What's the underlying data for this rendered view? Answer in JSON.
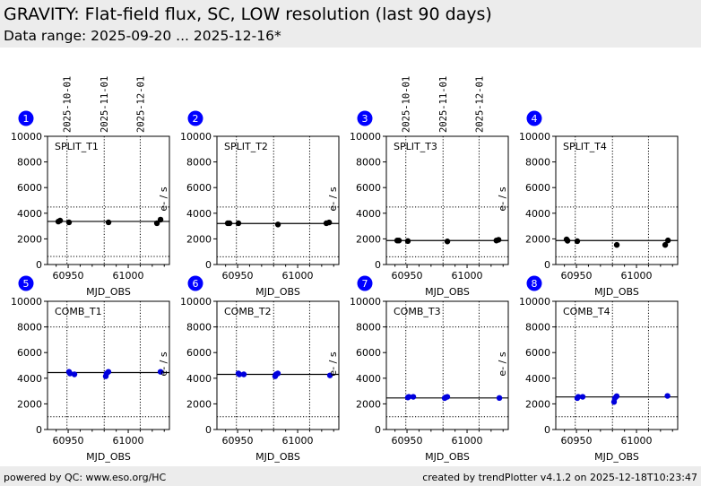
{
  "header": {
    "title": "GRAVITY: Flat-field flux, SC, LOW resolution (last 90 days)",
    "subtitle": "Data range: 2025-09-20 ... 2025-12-16*"
  },
  "footer": {
    "left": "powered by QC: www.eso.org/HC",
    "right": "created by trendPlotter v4.1.2 on 2025-12-18T10:23:47"
  },
  "colors": {
    "badge": "#0000ff",
    "split_marker": "#000000",
    "comb_marker": "#0000dd",
    "header_bg": "#ececec"
  },
  "chart_data": [
    {
      "type": "scatter",
      "badge": "1",
      "label": "SPLIT_T1",
      "xlabel": "MJD_OBS",
      "ylabel": "e- / s",
      "xlim": [
        60932.8,
        61034.3
      ],
      "ylim": [
        0,
        10000
      ],
      "xticks": [
        60950,
        61000
      ],
      "yticks": [
        0,
        2000,
        4000,
        6000,
        8000,
        10000
      ],
      "date_lines": [
        {
          "mjd": 60949,
          "label": "2025-10-01"
        },
        {
          "mjd": 60980,
          "label": "2025-11-01"
        },
        {
          "mjd": 61010,
          "label": "2025-12-01"
        }
      ],
      "show_date_labels": true,
      "reference": 3360,
      "thresholds": [
        630,
        4480
      ],
      "marker_color": "#000000",
      "x": [
        60941.8,
        60943.3,
        60950.7,
        60983.6,
        61023.9,
        61026.9
      ],
      "y": [
        3350,
        3430,
        3290,
        3290,
        3220,
        3500
      ]
    },
    {
      "type": "scatter",
      "badge": "2",
      "label": "SPLIT_T2",
      "xlabel": "MJD_OBS",
      "ylabel": "e- / s",
      "xlim": [
        60932.8,
        61034.3
      ],
      "ylim": [
        0,
        10000
      ],
      "xticks": [
        60950,
        61000
      ],
      "yticks": [
        0,
        2000,
        4000,
        6000,
        8000,
        10000
      ],
      "date_lines": [
        {
          "mjd": 60949,
          "label": "2025-10-01"
        },
        {
          "mjd": 60980,
          "label": "2025-11-01"
        },
        {
          "mjd": 61010,
          "label": "2025-12-01"
        }
      ],
      "show_date_labels": false,
      "reference": 3200,
      "thresholds": [
        600,
        4480
      ],
      "marker_color": "#000000",
      "x": [
        60941.8,
        60943.3,
        60950.7,
        60983.6,
        61023.9,
        61026.2
      ],
      "y": [
        3220,
        3220,
        3220,
        3120,
        3220,
        3280
      ]
    },
    {
      "type": "scatter",
      "badge": "3",
      "label": "SPLIT_T3",
      "xlabel": "MJD_OBS",
      "ylabel": "e- / s",
      "xlim": [
        60932.8,
        61034.3
      ],
      "ylim": [
        0,
        10000
      ],
      "xticks": [
        60950,
        61000
      ],
      "yticks": [
        0,
        2000,
        4000,
        6000,
        8000,
        10000
      ],
      "date_lines": [
        {
          "mjd": 60949,
          "label": "2025-10-01"
        },
        {
          "mjd": 60980,
          "label": "2025-11-01"
        },
        {
          "mjd": 61010,
          "label": "2025-12-01"
        }
      ],
      "show_date_labels": true,
      "reference": 1870,
      "thresholds": [
        600,
        4480
      ],
      "marker_color": "#000000",
      "x": [
        60941.8,
        60943.3,
        60950.7,
        60983.6,
        61024.4,
        61026.2
      ],
      "y": [
        1870,
        1870,
        1830,
        1800,
        1870,
        1930
      ]
    },
    {
      "type": "scatter",
      "badge": "4",
      "label": "SPLIT_T4",
      "xlabel": "MJD_OBS",
      "ylabel": "e- / s",
      "xlim": [
        60932.8,
        61034.3
      ],
      "ylim": [
        0,
        10000
      ],
      "xticks": [
        60950,
        61000
      ],
      "yticks": [
        0,
        2000,
        4000,
        6000,
        8000,
        10000
      ],
      "date_lines": [
        {
          "mjd": 60949,
          "label": "2025-10-01"
        },
        {
          "mjd": 60980,
          "label": "2025-11-01"
        },
        {
          "mjd": 61010,
          "label": "2025-12-01"
        }
      ],
      "show_date_labels": false,
      "reference": 1870,
      "thresholds": [
        600,
        4480
      ],
      "marker_color": "#000000",
      "x": [
        60941.8,
        60942.6,
        60950.7,
        60983.6,
        61023.9,
        61026.2
      ],
      "y": [
        1960,
        1850,
        1820,
        1530,
        1530,
        1880
      ]
    },
    {
      "type": "scatter",
      "badge": "5",
      "label": "COMB_T1",
      "xlabel": "MJD_OBS",
      "ylabel": "e- / s",
      "xlim": [
        60932.8,
        61034.3
      ],
      "ylim": [
        0,
        10000
      ],
      "xticks": [
        60950,
        61000
      ],
      "yticks": [
        0,
        2000,
        4000,
        6000,
        8000,
        10000
      ],
      "date_lines": [
        {
          "mjd": 60949,
          "label": "2025-10-01"
        },
        {
          "mjd": 60980,
          "label": "2025-11-01"
        },
        {
          "mjd": 61010,
          "label": "2025-12-01"
        }
      ],
      "show_date_labels": false,
      "reference": 4440,
      "thresholds": [
        1000,
        8000
      ],
      "marker_color": "#0000dd",
      "x": [
        60950.7,
        60951.5,
        60955.2,
        60981.3,
        60982.0,
        60983.5,
        61026.9
      ],
      "y": [
        4500,
        4370,
        4300,
        4150,
        4370,
        4500,
        4500
      ]
    },
    {
      "type": "scatter",
      "badge": "6",
      "label": "COMB_T2",
      "xlabel": "MJD_OBS",
      "ylabel": "e- / s",
      "xlim": [
        60932.8,
        61034.3
      ],
      "ylim": [
        0,
        10000
      ],
      "xticks": [
        60950,
        61000
      ],
      "yticks": [
        0,
        2000,
        4000,
        6000,
        8000,
        10000
      ],
      "date_lines": [
        {
          "mjd": 60949,
          "label": "2025-10-01"
        },
        {
          "mjd": 60980,
          "label": "2025-11-01"
        },
        {
          "mjd": 61010,
          "label": "2025-12-01"
        }
      ],
      "show_date_labels": false,
      "reference": 4300,
      "thresholds": [
        1000,
        8000
      ],
      "marker_color": "#0000dd",
      "x": [
        60950.7,
        60951.5,
        60955.2,
        60981.3,
        60982.0,
        60983.5,
        61026.9
      ],
      "y": [
        4370,
        4300,
        4300,
        4150,
        4300,
        4370,
        4220
      ]
    },
    {
      "type": "scatter",
      "badge": "7",
      "label": "COMB_T3",
      "xlabel": "MJD_OBS",
      "ylabel": "e- / s",
      "xlim": [
        60932.8,
        61034.3
      ],
      "ylim": [
        0,
        10000
      ],
      "xticks": [
        60950,
        61000
      ],
      "yticks": [
        0,
        2000,
        4000,
        6000,
        8000,
        10000
      ],
      "date_lines": [
        {
          "mjd": 60949,
          "label": "2025-10-01"
        },
        {
          "mjd": 60980,
          "label": "2025-11-01"
        },
        {
          "mjd": 61010,
          "label": "2025-12-01"
        }
      ],
      "show_date_labels": false,
      "reference": 2460,
      "thresholds": [
        1000,
        8000
      ],
      "marker_color": "#0000dd",
      "x": [
        60950.7,
        60951.5,
        60955.2,
        60981.3,
        60982.0,
        60983.5,
        61026.9
      ],
      "y": [
        2500,
        2550,
        2550,
        2450,
        2500,
        2550,
        2460
      ]
    },
    {
      "type": "scatter",
      "badge": "8",
      "label": "COMB_T4",
      "xlabel": "MJD_OBS",
      "ylabel": "e- / s",
      "xlim": [
        60932.8,
        61034.3
      ],
      "ylim": [
        0,
        10000
      ],
      "xticks": [
        60950,
        61000
      ],
      "yticks": [
        0,
        2000,
        4000,
        6000,
        8000,
        10000
      ],
      "date_lines": [
        {
          "mjd": 60949,
          "label": "2025-10-01"
        },
        {
          "mjd": 60980,
          "label": "2025-11-01"
        },
        {
          "mjd": 61010,
          "label": "2025-12-01"
        }
      ],
      "show_date_labels": false,
      "reference": 2540,
      "thresholds": [
        1000,
        8000
      ],
      "marker_color": "#0000dd",
      "x": [
        60950.7,
        60951.5,
        60955.2,
        60981.3,
        60982.0,
        60983.5,
        61025.8
      ],
      "y": [
        2450,
        2550,
        2550,
        2150,
        2450,
        2600,
        2620
      ]
    }
  ]
}
